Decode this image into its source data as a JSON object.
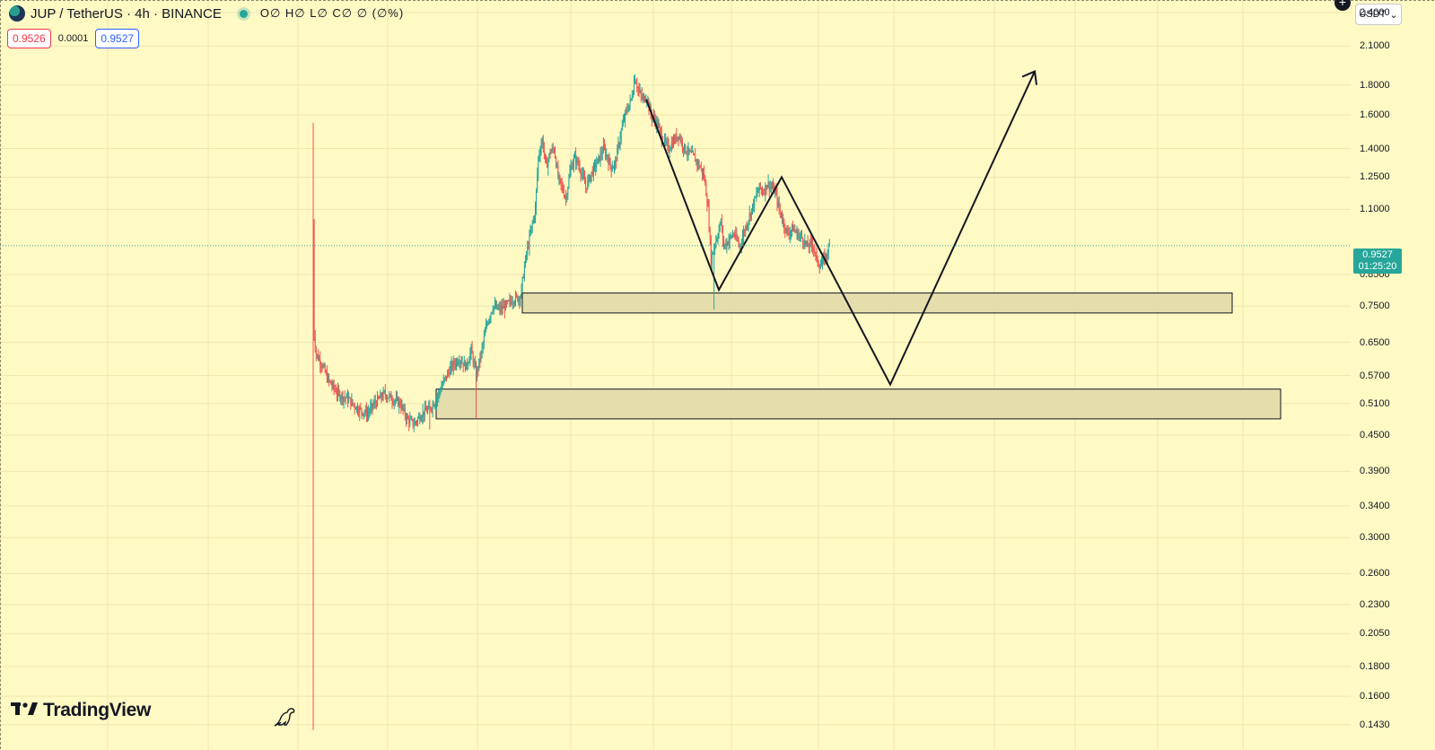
{
  "header": {
    "symbol": "JUP / TetherUS · 4h · BINANCE",
    "ohlc": "O∅ H∅ L∅ C∅ ∅ (∅%)"
  },
  "prices": {
    "sell": "0.9526",
    "spread": "0.0001",
    "buy": "0.9527"
  },
  "currency": {
    "label": "USDT"
  },
  "axis": {
    "labels": [
      "2.4000",
      "2.1000",
      "1.8000",
      "1.6000",
      "1.4000",
      "1.2500",
      "1.1000",
      "0.8500",
      "0.7500",
      "0.6500",
      "0.5700",
      "0.5100",
      "0.4500",
      "0.3900",
      "0.3400",
      "0.3000",
      "0.2600",
      "0.2300",
      "0.2050",
      "0.1800",
      "0.1600",
      "0.1430"
    ]
  },
  "last_price": {
    "value": "0.9527",
    "countdown": "01:25:20",
    "color": "#26a69a"
  },
  "logo": {
    "text": "TradingView"
  },
  "colors": {
    "up": "#26a69a",
    "down": "#ef5350",
    "background": "#fff9c4",
    "zone": "#e0d9a8"
  },
  "chart_data": {
    "type": "candlestick",
    "scale": "log",
    "ylim": [
      0.135,
      2.45
    ],
    "interval": "4h",
    "price_path": [
      [
        0,
        1.05
      ],
      [
        0.6,
        0.68
      ],
      [
        3,
        0.62
      ],
      [
        8,
        0.6
      ],
      [
        15,
        0.56
      ],
      [
        25,
        0.53
      ],
      [
        35,
        0.52
      ],
      [
        45,
        0.5
      ],
      [
        55,
        0.49
      ],
      [
        62,
        0.51
      ],
      [
        72,
        0.53
      ],
      [
        80,
        0.52
      ],
      [
        88,
        0.51
      ],
      [
        95,
        0.48
      ],
      [
        102,
        0.47
      ],
      [
        110,
        0.49
      ],
      [
        118,
        0.5
      ],
      [
        125,
        0.52
      ],
      [
        133,
        0.56
      ],
      [
        140,
        0.59
      ],
      [
        148,
        0.61
      ],
      [
        155,
        0.59
      ],
      [
        160,
        0.63
      ],
      [
        165,
        0.57
      ],
      [
        170,
        0.62
      ],
      [
        176,
        0.7
      ],
      [
        182,
        0.75
      ],
      [
        188,
        0.74
      ],
      [
        195,
        0.75
      ],
      [
        202,
        0.77
      ],
      [
        210,
        0.78
      ],
      [
        215,
        0.9
      ],
      [
        220,
        1.0
      ],
      [
        225,
        1.1
      ],
      [
        228,
        1.35
      ],
      [
        232,
        1.45
      ],
      [
        236,
        1.3
      ],
      [
        240,
        1.38
      ],
      [
        244,
        1.4
      ],
      [
        248,
        1.25
      ],
      [
        252,
        1.2
      ],
      [
        256,
        1.15
      ],
      [
        261,
        1.3
      ],
      [
        265,
        1.35
      ],
      [
        270,
        1.3
      ],
      [
        276,
        1.2
      ],
      [
        280,
        1.25
      ],
      [
        285,
        1.3
      ],
      [
        290,
        1.35
      ],
      [
        294,
        1.4
      ],
      [
        298,
        1.35
      ],
      [
        302,
        1.3
      ],
      [
        306,
        1.32
      ],
      [
        312,
        1.5
      ],
      [
        316,
        1.6
      ],
      [
        322,
        1.7
      ],
      [
        326,
        1.85
      ],
      [
        330,
        1.75
      ],
      [
        334,
        1.7
      ],
      [
        338,
        1.72
      ],
      [
        342,
        1.6
      ],
      [
        348,
        1.55
      ],
      [
        354,
        1.45
      ],
      [
        360,
        1.4
      ],
      [
        366,
        1.45
      ],
      [
        370,
        1.48
      ],
      [
        376,
        1.4
      ],
      [
        380,
        1.38
      ],
      [
        386,
        1.35
      ],
      [
        392,
        1.3
      ],
      [
        396,
        1.25
      ],
      [
        400,
        1.1
      ],
      [
        403,
        0.9
      ],
      [
        406,
        0.95
      ],
      [
        410,
        1.0
      ],
      [
        413,
        1.05
      ],
      [
        416,
        0.95
      ],
      [
        420,
        0.97
      ],
      [
        426,
        1.0
      ],
      [
        432,
        0.95
      ],
      [
        436,
        1.0
      ],
      [
        440,
        1.05
      ],
      [
        444,
        1.1
      ],
      [
        448,
        1.15
      ],
      [
        452,
        1.2
      ],
      [
        456,
        1.18
      ],
      [
        460,
        1.22
      ],
      [
        464,
        1.2
      ],
      [
        468,
        1.18
      ],
      [
        472,
        1.1
      ],
      [
        476,
        1.05
      ],
      [
        480,
        1.0
      ],
      [
        486,
        1.02
      ],
      [
        490,
        1.0
      ],
      [
        496,
        0.98
      ],
      [
        500,
        0.95
      ],
      [
        506,
        0.96
      ],
      [
        510,
        0.9
      ],
      [
        514,
        0.88
      ],
      [
        520,
        0.92
      ],
      [
        523,
        0.95
      ]
    ],
    "wicks": [
      {
        "i": 118,
        "low": 0.46
      },
      {
        "i": 165,
        "low": 0.48
      },
      {
        "i": 202,
        "high": 0.78
      },
      {
        "i": 326,
        "high": 1.88
      },
      {
        "i": 406,
        "low": 0.74
      }
    ],
    "zones": [
      {
        "from": 0.73,
        "to": 0.79
      },
      {
        "from": 0.48,
        "to": 0.54
      }
    ],
    "projection": [
      [
        1.7,
        1.7
      ],
      [
        0.8,
        0.8
      ],
      [
        1.25,
        1.25
      ],
      [
        0.55,
        0.55
      ],
      [
        1.9,
        1.9
      ]
    ]
  }
}
